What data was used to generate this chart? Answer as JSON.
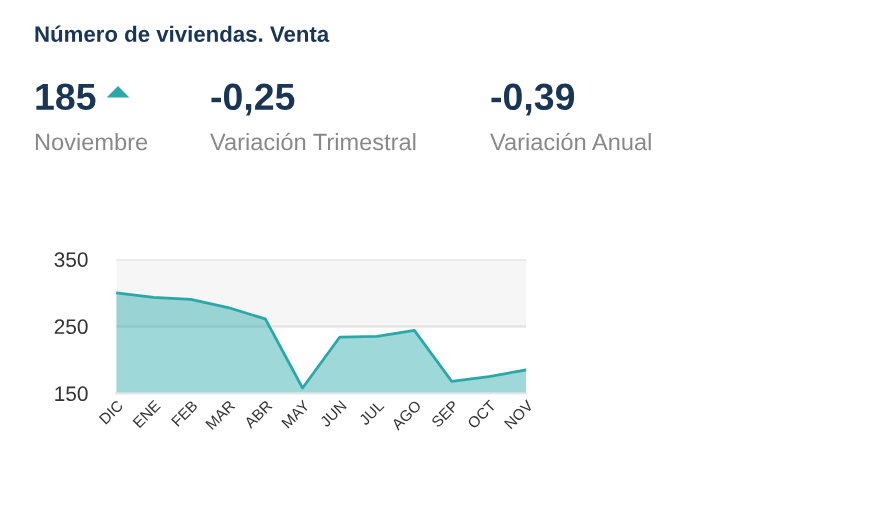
{
  "chart_data": {
    "type": "area",
    "title": "Número de viviendas. Venta",
    "annotations": [
      "185",
      "Noviembre",
      "-0,25",
      "Variación Trimestral",
      "-0,39",
      "Variación Anual"
    ],
    "categories": [
      "DIC",
      "ENE",
      "FEB",
      "MAR",
      "ABR",
      "MAY",
      "JUN",
      "JUL",
      "AGO",
      "SEP",
      "OCT",
      "NOV"
    ],
    "series": [
      {
        "color": "#2aa8a8",
        "values": [
          300,
          293,
          290,
          278,
          261,
          158,
          234,
          235,
          244,
          168,
          175,
          185
        ]
      }
    ],
    "ylim": [
      150,
      350
    ],
    "yticks": [
      150,
      250,
      350
    ],
    "grid": "y",
    "bands": [
      {
        "axis": "y",
        "from": 250,
        "to": 350,
        "color": "#f6f6f6"
      }
    ]
  }
}
